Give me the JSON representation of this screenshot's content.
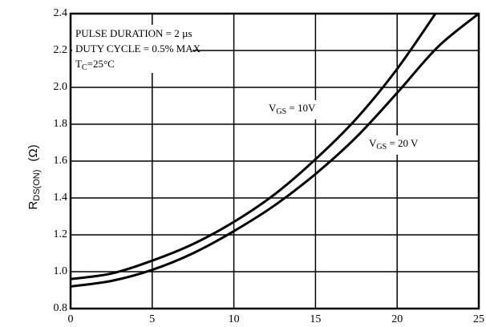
{
  "chart_data": {
    "type": "line",
    "ylabel": {
      "main": "R",
      "sub": "DS(ON)",
      "unit": "(Ω)"
    },
    "x": [
      0,
      2.5,
      5,
      7.5,
      10,
      12.5,
      15,
      17.5,
      20,
      22.5,
      25
    ],
    "series": [
      {
        "label": {
          "main": "V",
          "sub": "GS",
          "rest": " = 10V"
        },
        "color": "#000000",
        "values": [
          0.96,
          0.99,
          1.06,
          1.15,
          1.27,
          1.42,
          1.61,
          1.83,
          2.1,
          2.42,
          null
        ]
      },
      {
        "label": {
          "main": "V",
          "sub": "GS",
          "rest": " = 20 V"
        },
        "color": "#000000",
        "values": [
          0.92,
          0.95,
          1.01,
          1.1,
          1.22,
          1.36,
          1.53,
          1.73,
          1.97,
          2.22,
          2.4
        ]
      }
    ],
    "annotations": [
      {
        "main": "PULSE DURATION = 2 µs"
      },
      {
        "main": "DUTY CYCLE = 0.5% MAX"
      },
      {
        "main": "T",
        "sub": "C",
        "rest": "=25°C"
      }
    ],
    "xlim": [
      0,
      25
    ],
    "xticks": [
      0,
      5,
      10,
      15,
      20,
      25
    ],
    "ylim": [
      0.8,
      2.4
    ],
    "yticks": [
      0.8,
      {
        "value": 1,
        "label": "1.0"
      },
      1.2,
      1.4,
      1.6,
      1.8,
      {
        "value": 2,
        "label": "2.0"
      },
      2.2,
      2.4
    ],
    "grid": true
  }
}
